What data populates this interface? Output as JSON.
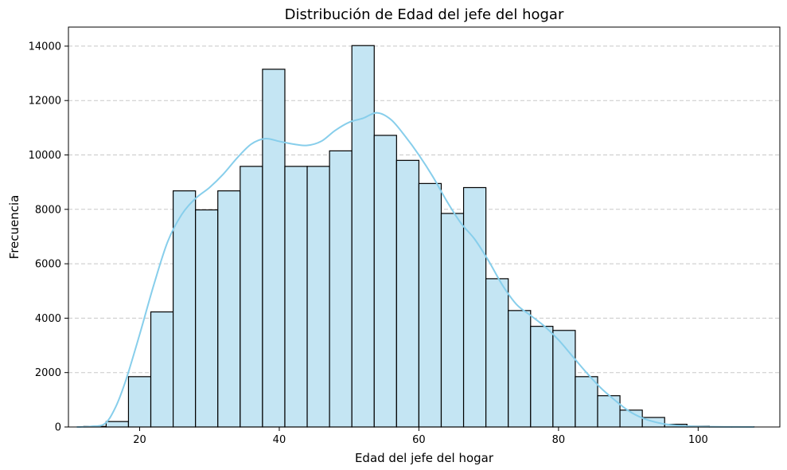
{
  "chart_data": {
    "type": "bar",
    "title": "Distribución de Edad del jefe del hogar",
    "xlabel": "Edad del jefe del hogar",
    "ylabel": "Frecuencia",
    "xlim": [
      9.8,
      111.7
    ],
    "ylim": [
      0,
      14700
    ],
    "xticks": [
      20,
      40,
      60,
      80,
      100
    ],
    "yticks": [
      0,
      2000,
      4000,
      6000,
      8000,
      10000,
      12000,
      14000
    ],
    "grid": "y",
    "bin_edges": [
      12.0,
      15.2,
      18.4,
      21.6,
      24.8,
      28.0,
      31.2,
      34.4,
      37.6,
      40.8,
      44.0,
      47.2,
      50.4,
      53.6,
      56.8,
      60.0,
      63.2,
      66.4,
      69.6,
      72.8,
      76.0,
      79.2,
      82.4,
      85.6,
      88.8,
      92.0,
      95.2,
      98.4,
      101.6,
      104.8,
      108.0
    ],
    "values": [
      20,
      200,
      1850,
      4230,
      8680,
      7980,
      8680,
      9580,
      13150,
      9580,
      9580,
      10150,
      14020,
      10720,
      9800,
      8950,
      7850,
      8800,
      5450,
      4280,
      3700,
      3550,
      1850,
      1150,
      620,
      350,
      100,
      30,
      10,
      5
    ],
    "kde": {
      "x": [
        11,
        13,
        15,
        16.5,
        18,
        20,
        22,
        24,
        26,
        28,
        30,
        32,
        34,
        36,
        38,
        40,
        42,
        44,
        46,
        48,
        50,
        52,
        54,
        56,
        58,
        60,
        62,
        64,
        66,
        68,
        70,
        72,
        74,
        76,
        78,
        80,
        82,
        84,
        86,
        88,
        90,
        92,
        94,
        96,
        98,
        100,
        104,
        108
      ],
      "y": [
        0,
        20,
        120,
        700,
        1700,
        3400,
        5200,
        6800,
        7800,
        8400,
        8800,
        9300,
        9900,
        10400,
        10600,
        10500,
        10400,
        10350,
        10500,
        10900,
        11200,
        11350,
        11550,
        11300,
        10700,
        10000,
        9200,
        8300,
        7500,
        6900,
        6100,
        5200,
        4500,
        4100,
        3700,
        3200,
        2600,
        2000,
        1450,
        1000,
        600,
        330,
        170,
        80,
        35,
        15,
        4,
        0
      ]
    },
    "colors": {
      "bar_fill": "#c4e5f3",
      "bar_edge": "#000000",
      "kde_line": "#87ceeb",
      "grid": "#c8c8c8"
    }
  }
}
